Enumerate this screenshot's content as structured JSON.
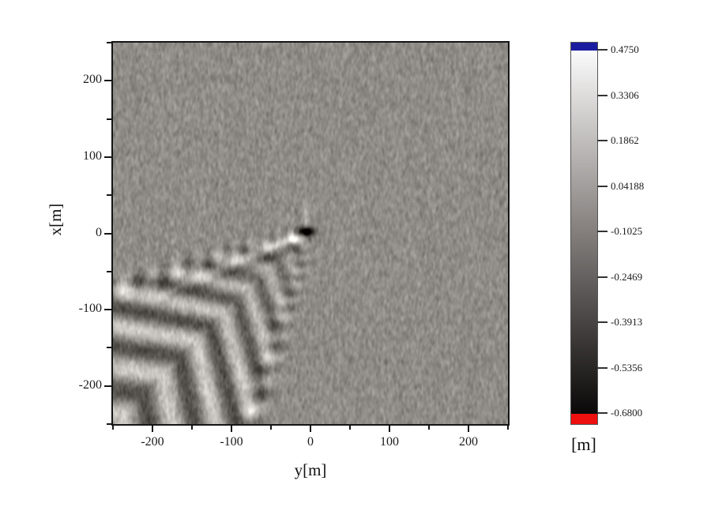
{
  "figure": {
    "background": "#ffffff"
  },
  "axes": {
    "xlabel": "y[m]",
    "ylabel": "x[m]",
    "x_tick_labels": [
      "-200",
      "-100",
      "0",
      "100",
      "200"
    ],
    "y_tick_labels": [
      "200",
      "100",
      "0",
      "-100",
      "-200"
    ]
  },
  "colorbar": {
    "unit_label": "[m]",
    "tick_labels": [
      "0.4750",
      "0.3306",
      "0.1862",
      "0.04188",
      "-0.1025",
      "-0.2469",
      "-0.3913",
      "-0.5356",
      "-0.6800"
    ],
    "over_color": "#1c1ca0",
    "under_color": "#ee0f0f",
    "gradient_top": "#fbfbfb",
    "gradient_mid": "#8b8684",
    "gradient_bottom": "#0a0808"
  },
  "chart_data": {
    "type": "heatmap",
    "title": "",
    "xlabel": "y[m]",
    "ylabel": "x[m]",
    "x_range": [
      -250,
      250
    ],
    "y_range": [
      -250,
      250
    ],
    "x_ticks": [
      -200,
      -100,
      0,
      100,
      200
    ],
    "y_ticks": [
      200,
      100,
      0,
      -100,
      -200
    ],
    "minor_tick_step": 50,
    "value_unit": "m",
    "value_range": [
      -0.68,
      0.475
    ],
    "colorbar_ticks": [
      0.475,
      0.3306,
      0.1862,
      0.04188,
      -0.1025,
      -0.2469,
      -0.3913,
      -0.5356,
      -0.68
    ],
    "colormap": "grayscale (white = high, black = low), blue cap = over-range, red cap = under-range",
    "field": {
      "description": "Sea-surface elevation map of a ship Kelvin wake: uniform noisy gray background, dark point disturbance (ship) at the origin (y=0, x=0) with a small bright crest beside it, and a V-shaped fan of alternating bright/dark wave crests (chevron-like transverse waves plus divergent-wave streaks along the arms) opening toward the lower-left quadrant (negative y, negative x); crest amplitude grows with distance astern until it saturates near the lower-left corner",
      "background_level": -0.05,
      "noise_amplitude": 0.03,
      "ship": {
        "y": -6,
        "x": 2
      },
      "wake_axis_deg": 226,
      "wake_half_angle_deg": 27,
      "upper_arm_deg": 204,
      "wavelength_near": 26,
      "wavelength_growth": 0.06
    }
  }
}
